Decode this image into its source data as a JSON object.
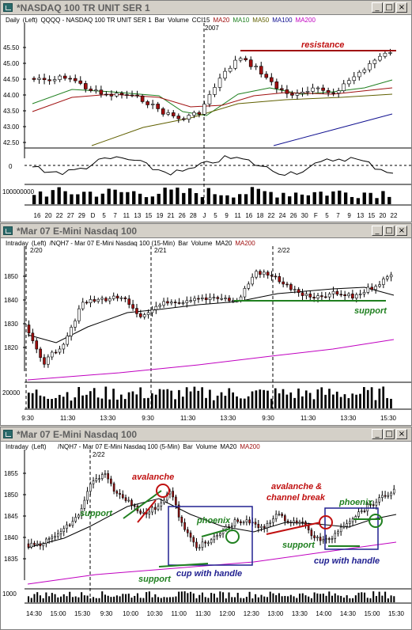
{
  "colors": {
    "titlebar": "#d4d0c8",
    "up": "#ffffff",
    "down": "#a01010",
    "ma20": "#a01010",
    "ma10": "#208020",
    "ma50": "#606000",
    "ma100": "#101090",
    "ma200": "#c000c0",
    "red_note": "#c01010",
    "green_note": "#208020",
    "blue_note": "#202090"
  },
  "window1": {
    "title": "*NASDAQ 100 TR UNIT SER 1",
    "info": {
      "period": "Daily",
      "axis": "(Left)",
      "symbol": "QQQQ - NASDAQ 100 TR UNIT SER 1",
      "bar": "Bar",
      "volume": "Volume",
      "cci": "CCI15",
      "ma20": "MA20",
      "ma10": "MA10",
      "ma50": "MA50",
      "ma100": "MA100",
      "ma200": "MA200"
    },
    "year_label": "2007",
    "price_ticks": [
      "45.50",
      "45.00",
      "44.50",
      "44.00",
      "43.50",
      "43.00",
      "42.50"
    ],
    "annotation": "resistance",
    "cci_zero": "0",
    "volume_tick": "100000000",
    "dates": [
      "16",
      "20",
      "22",
      "27",
      "29",
      "D",
      "5",
      "7",
      "11",
      "13",
      "15",
      "19",
      "21",
      "26",
      "28",
      "J",
      "5",
      "9",
      "11",
      "16",
      "18",
      "22",
      "24",
      "26",
      "30",
      "F",
      "5",
      "7",
      "9",
      "13",
      "15",
      "20",
      "22"
    ]
  },
  "window2": {
    "title": "*Mar 07  E-Mini Nasdaq 100",
    "info": {
      "period": "Intraday",
      "axis": "(Left)",
      "symbol": "/NQH7 - Mar 07 E-Mini Nasdaq 100 (15-Min)",
      "bar": "Bar",
      "volume": "Volume",
      "ma20": "MA20",
      "ma200": "MA200"
    },
    "day_labels": [
      "2/20",
      "2/21",
      "2/22"
    ],
    "price_ticks": [
      "1850",
      "1840",
      "1830",
      "1820"
    ],
    "annotation": "support",
    "volume_tick": "20000",
    "times": [
      "9:30",
      "11:30",
      "13:30",
      "9:30",
      "11:30",
      "13:30",
      "9:30",
      "11:30",
      "13:30",
      "15:30"
    ]
  },
  "window3": {
    "title": "*Mar 07  E-Mini Nasdaq 100",
    "info": {
      "period": "Intraday",
      "axis": "(Left)",
      "symbol": "/NQH7 - Mar 07 E-Mini Nasdaq 100 (5-Min)",
      "bar": "Bar",
      "volume": "Volume",
      "ma20": "MA20",
      "ma200": "MA200"
    },
    "day_label": "2/22",
    "price_ticks": [
      "1855",
      "1850",
      "1845",
      "1840",
      "1835"
    ],
    "annotations": {
      "support_left": "support",
      "avalanche": "avalanche",
      "phoenix_left": "phoenix",
      "support_bottom": "support",
      "cup_left": "cup with handle",
      "avalanche_channel_1": "avalanche &",
      "avalanche_channel_2": "channel break",
      "phoenix_right": "phoenix",
      "support_right": "support",
      "cup_right": "cup with handle"
    },
    "volume_tick": "1000",
    "times": [
      "14:30",
      "15:00",
      "15:30",
      "9:30",
      "10:00",
      "10:30",
      "11:00",
      "11:30",
      "12:00",
      "12:30",
      "13:00",
      "13:30",
      "14:00",
      "14:30",
      "15:00",
      "15:30"
    ]
  },
  "buttons": {
    "minimize": "_",
    "maximize": "□",
    "close": "×"
  }
}
